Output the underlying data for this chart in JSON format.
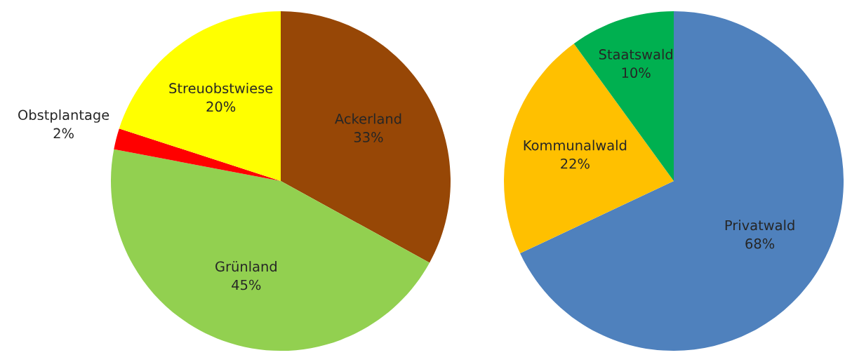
{
  "chart_data": [
    {
      "type": "pie",
      "categories": [
        "Ackerland",
        "Grünland",
        "Obstplantage",
        "Streuobstwiese"
      ],
      "values": [
        33,
        45,
        2,
        20
      ],
      "value_labels": [
        "33%",
        "45%",
        "2%",
        "20%"
      ],
      "colors": [
        "#974706",
        "#92d050",
        "#ff0000",
        "#ffff00"
      ]
    },
    {
      "type": "pie",
      "categories": [
        "Privatwald",
        "Kommunalwald",
        "Staatswald"
      ],
      "values": [
        68,
        22,
        10
      ],
      "value_labels": [
        "68%",
        "22%",
        "10%"
      ],
      "colors": [
        "#4f81bd",
        "#ffc000",
        "#00b050"
      ]
    }
  ]
}
